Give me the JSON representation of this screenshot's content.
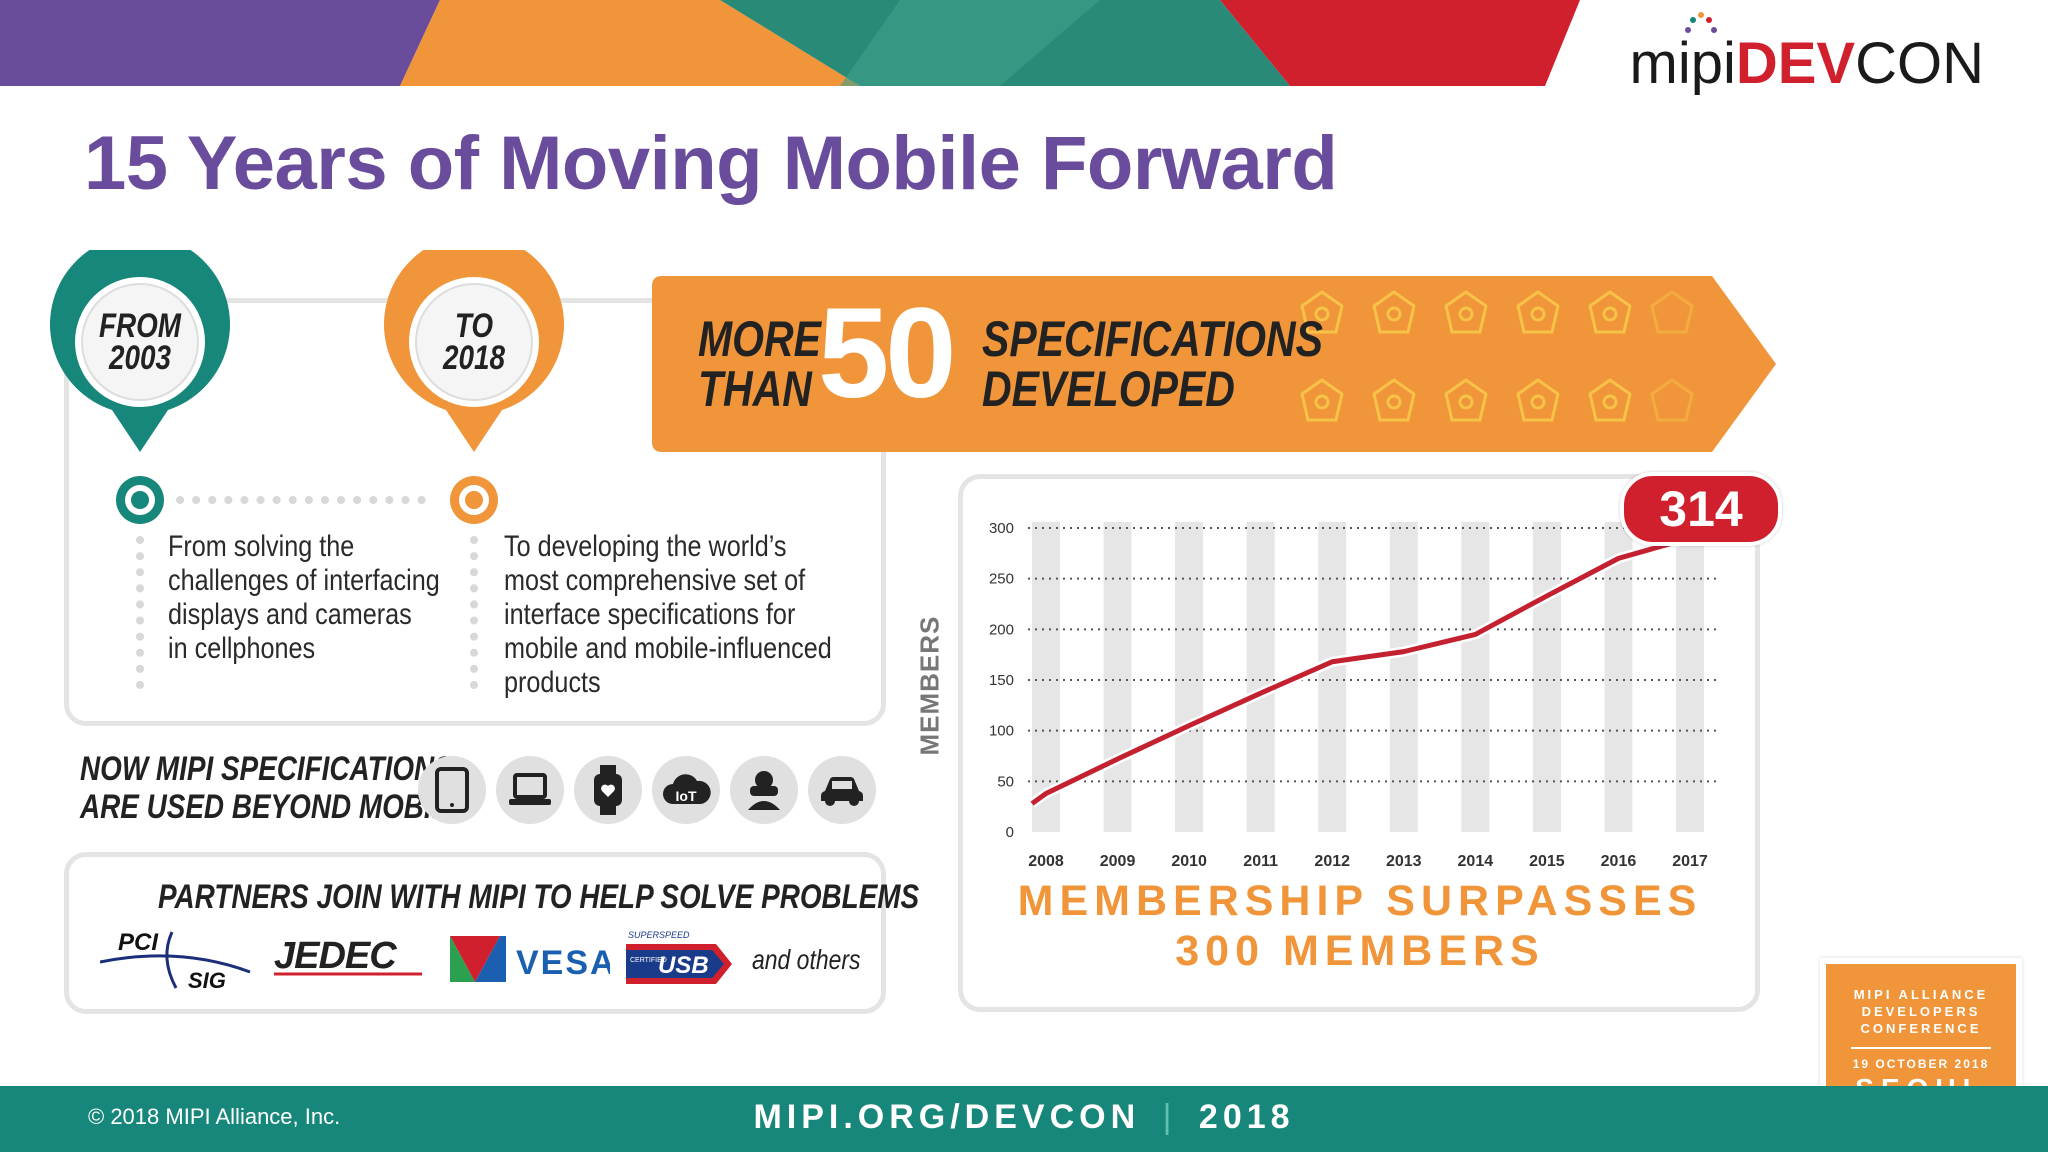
{
  "header": {
    "title": "15 Years of Moving Mobile Forward"
  },
  "logo": {
    "mipi": "mipi",
    "dev": "DEV",
    "con": "CON"
  },
  "timeline": {
    "from_label": "FROM",
    "from_year": "2003",
    "from_text": [
      "From solving the",
      "challenges of interfacing",
      "displays and cameras",
      "in cellphones"
    ],
    "to_label": "TO",
    "to_year": "2018",
    "to_text": [
      "To developing the world’s",
      "most comprehensive set of",
      "interface specifications for",
      "mobile and mobile-influenced",
      "products"
    ]
  },
  "specs": {
    "more": "MORE",
    "than": "THAN",
    "count": "50",
    "line1": "SPECIFICATIONS",
    "line2": "DEVELOPED"
  },
  "beyond": {
    "line1": "NOW MIPI SPECIFICATIONS",
    "line2": "ARE USED BEYOND MOBILE",
    "icons": [
      "tablet-icon",
      "laptop-icon",
      "smartwatch-icon",
      "iot-cloud-icon",
      "vr-headset-icon",
      "car-icon"
    ],
    "iot_label": "IoT"
  },
  "partners": {
    "heading": "PARTNERS JOIN WITH MIPI TO HELP SOLVE PROBLEMS",
    "pci": "PCI",
    "sig": "SIG",
    "jedec": "JEDEC",
    "vesa": "VESA",
    "usb_top": "SUPERSPEED",
    "usb_small": "CERTIFIED",
    "usb": "USB",
    "others": "and others"
  },
  "chart_data": {
    "type": "line",
    "title": "MEMBERSHIP SURPASSES 300 MEMBERS",
    "title_line1": "MEMBERSHIP SURPASSES",
    "title_line2": "300 MEMBERS",
    "ylabel": "MEMBERS",
    "xlabel": "",
    "x": [
      "2008",
      "2009",
      "2010",
      "2011",
      "2012",
      "2013",
      "2014",
      "2015",
      "2016",
      "2017"
    ],
    "values": [
      38,
      72,
      105,
      137,
      168,
      178,
      195,
      233,
      270,
      290
    ],
    "ylim": [
      0,
      300
    ],
    "yticks": [
      "0",
      "50",
      "100",
      "150",
      "200",
      "250",
      "300"
    ],
    "annotation": "314",
    "grid": true
  },
  "footer": {
    "copyright": "© 2018 MIPI Alliance, Inc.",
    "url": "MIPI.ORG/DEVCON",
    "sep": "|",
    "year": "2018"
  },
  "badge": {
    "line1": "MIPI ALLIANCE",
    "line2": "DEVELOPERS",
    "line3": "CONFERENCE",
    "date": "19 OCTOBER 2018",
    "city": "SEOUL"
  },
  "colors": {
    "purple": "#6a4c9c",
    "teal": "#16877a",
    "orange": "#f0953a",
    "red": "#d0202e"
  }
}
